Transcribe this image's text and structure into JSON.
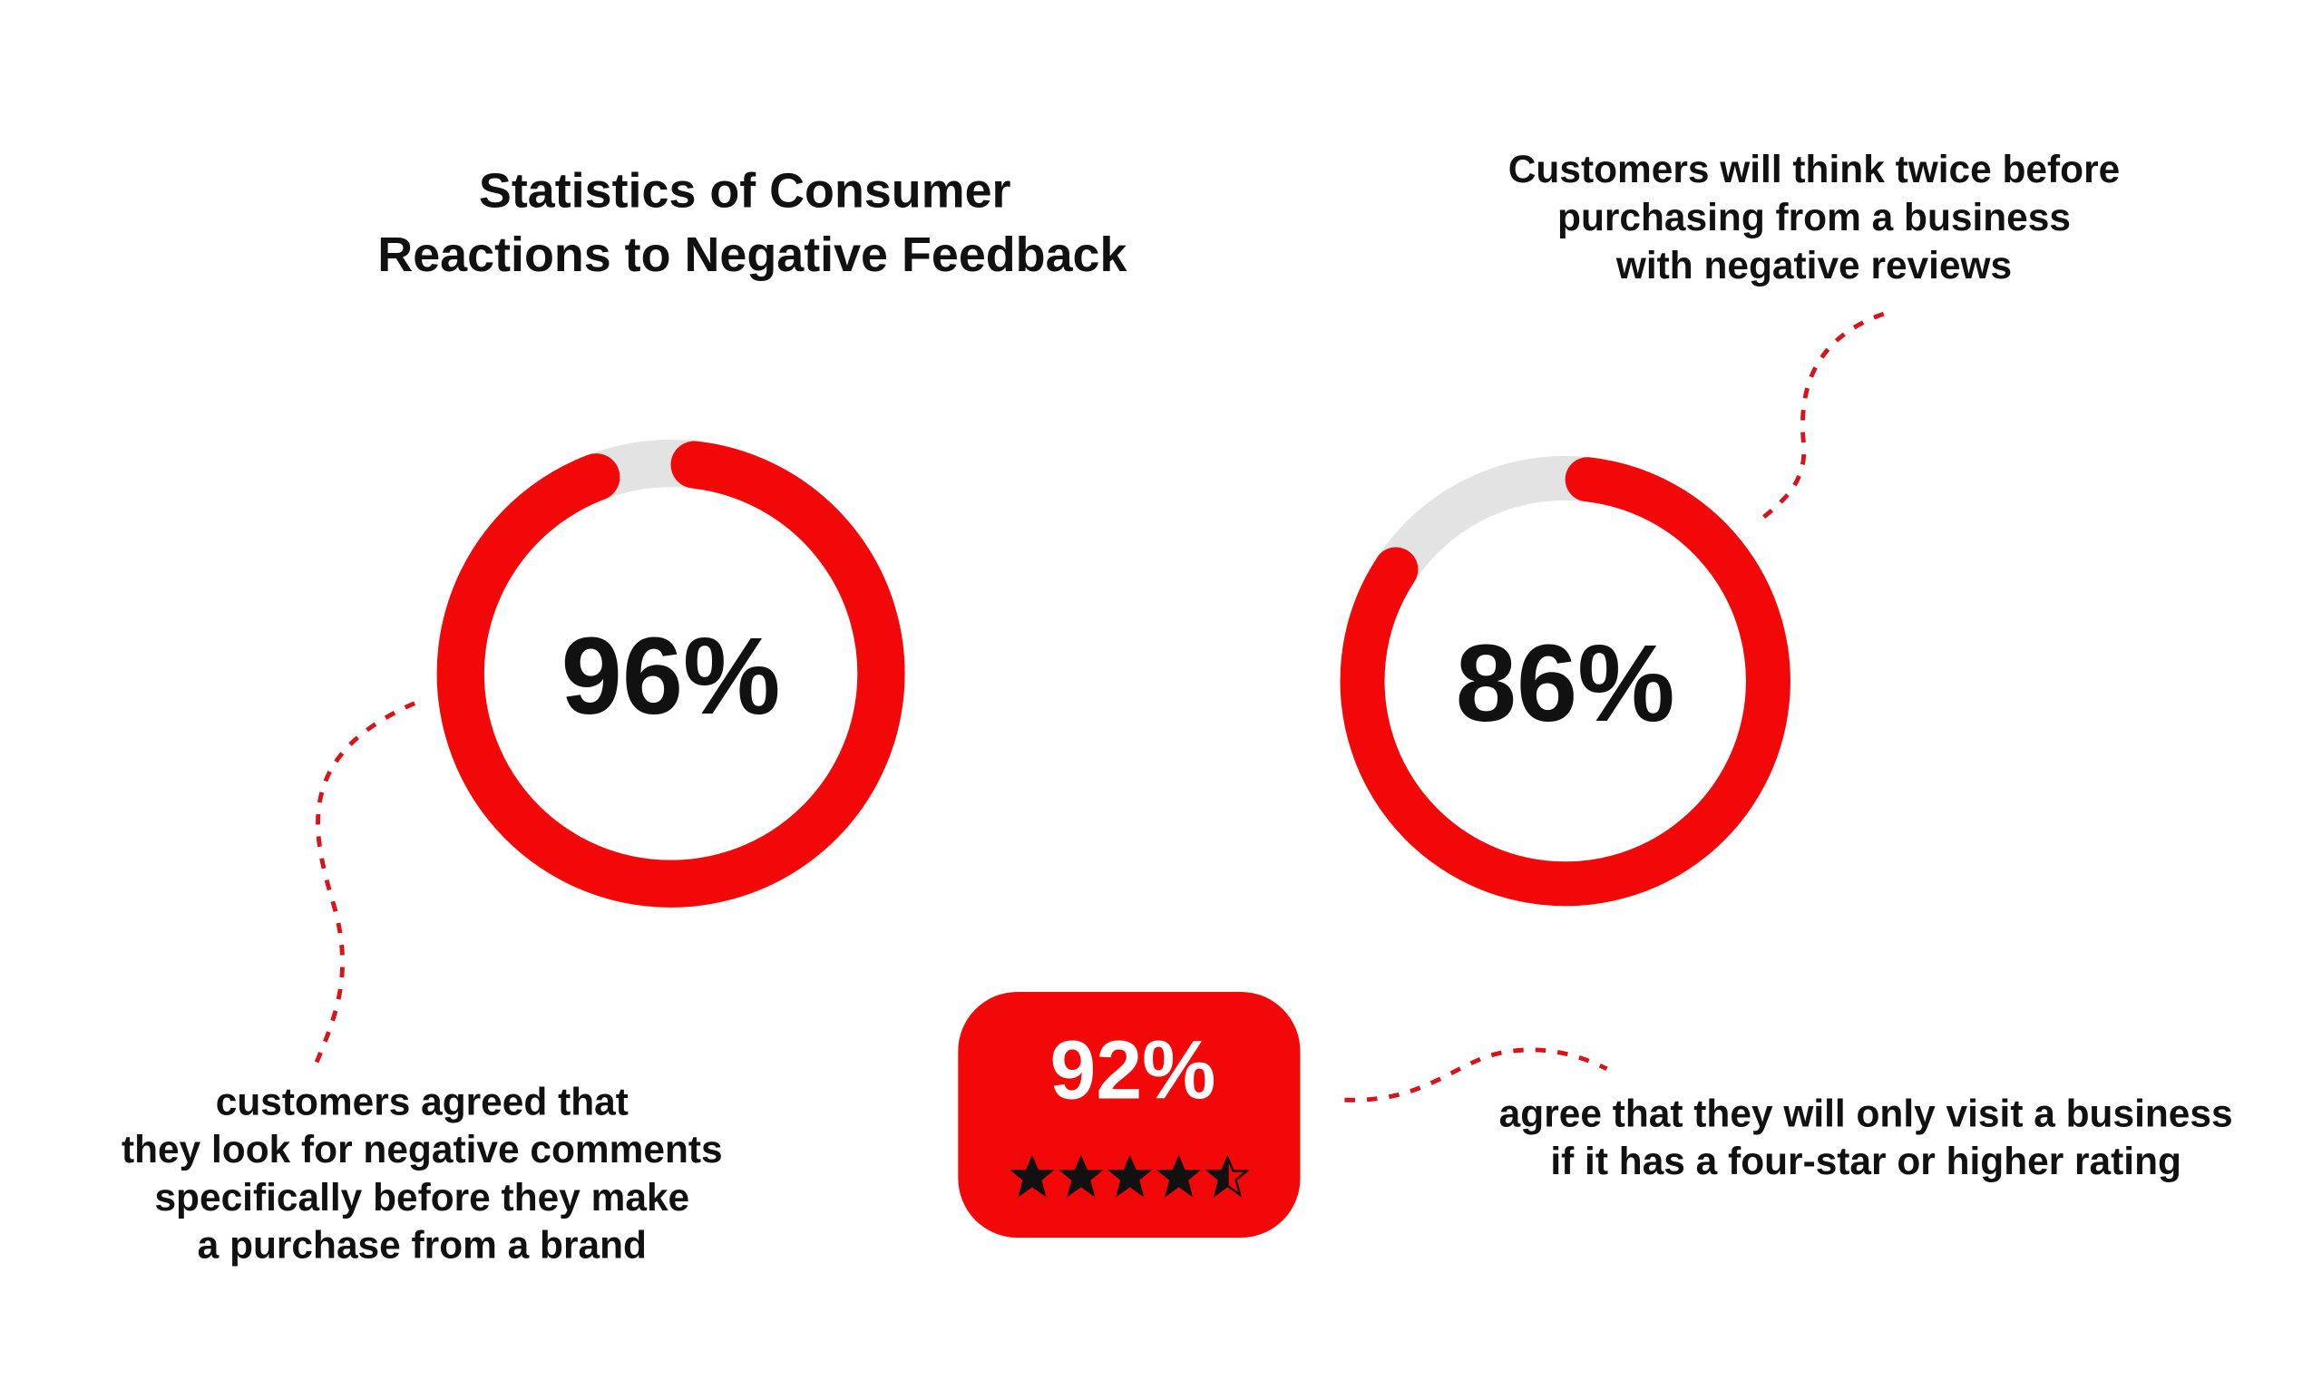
{
  "title": [
    "Statistics of Consumer",
    "Reactions to Negative Feedback"
  ],
  "stats": [
    {
      "value": 96,
      "value_label": "96%",
      "caption": [
        "customers agreed that",
        "they look for negative comments",
        "specifically before they make",
        "a purchase from a brand"
      ]
    },
    {
      "value": 86,
      "value_label": "86%",
      "caption": [
        "Customers will think twice before",
        "purchasing from a business",
        "with negative reviews"
      ]
    },
    {
      "value": 92,
      "value_label": "92%",
      "caption": [
        "agree that they will only visit a business",
        "if it has a four-star or higher rating"
      ]
    }
  ]
}
